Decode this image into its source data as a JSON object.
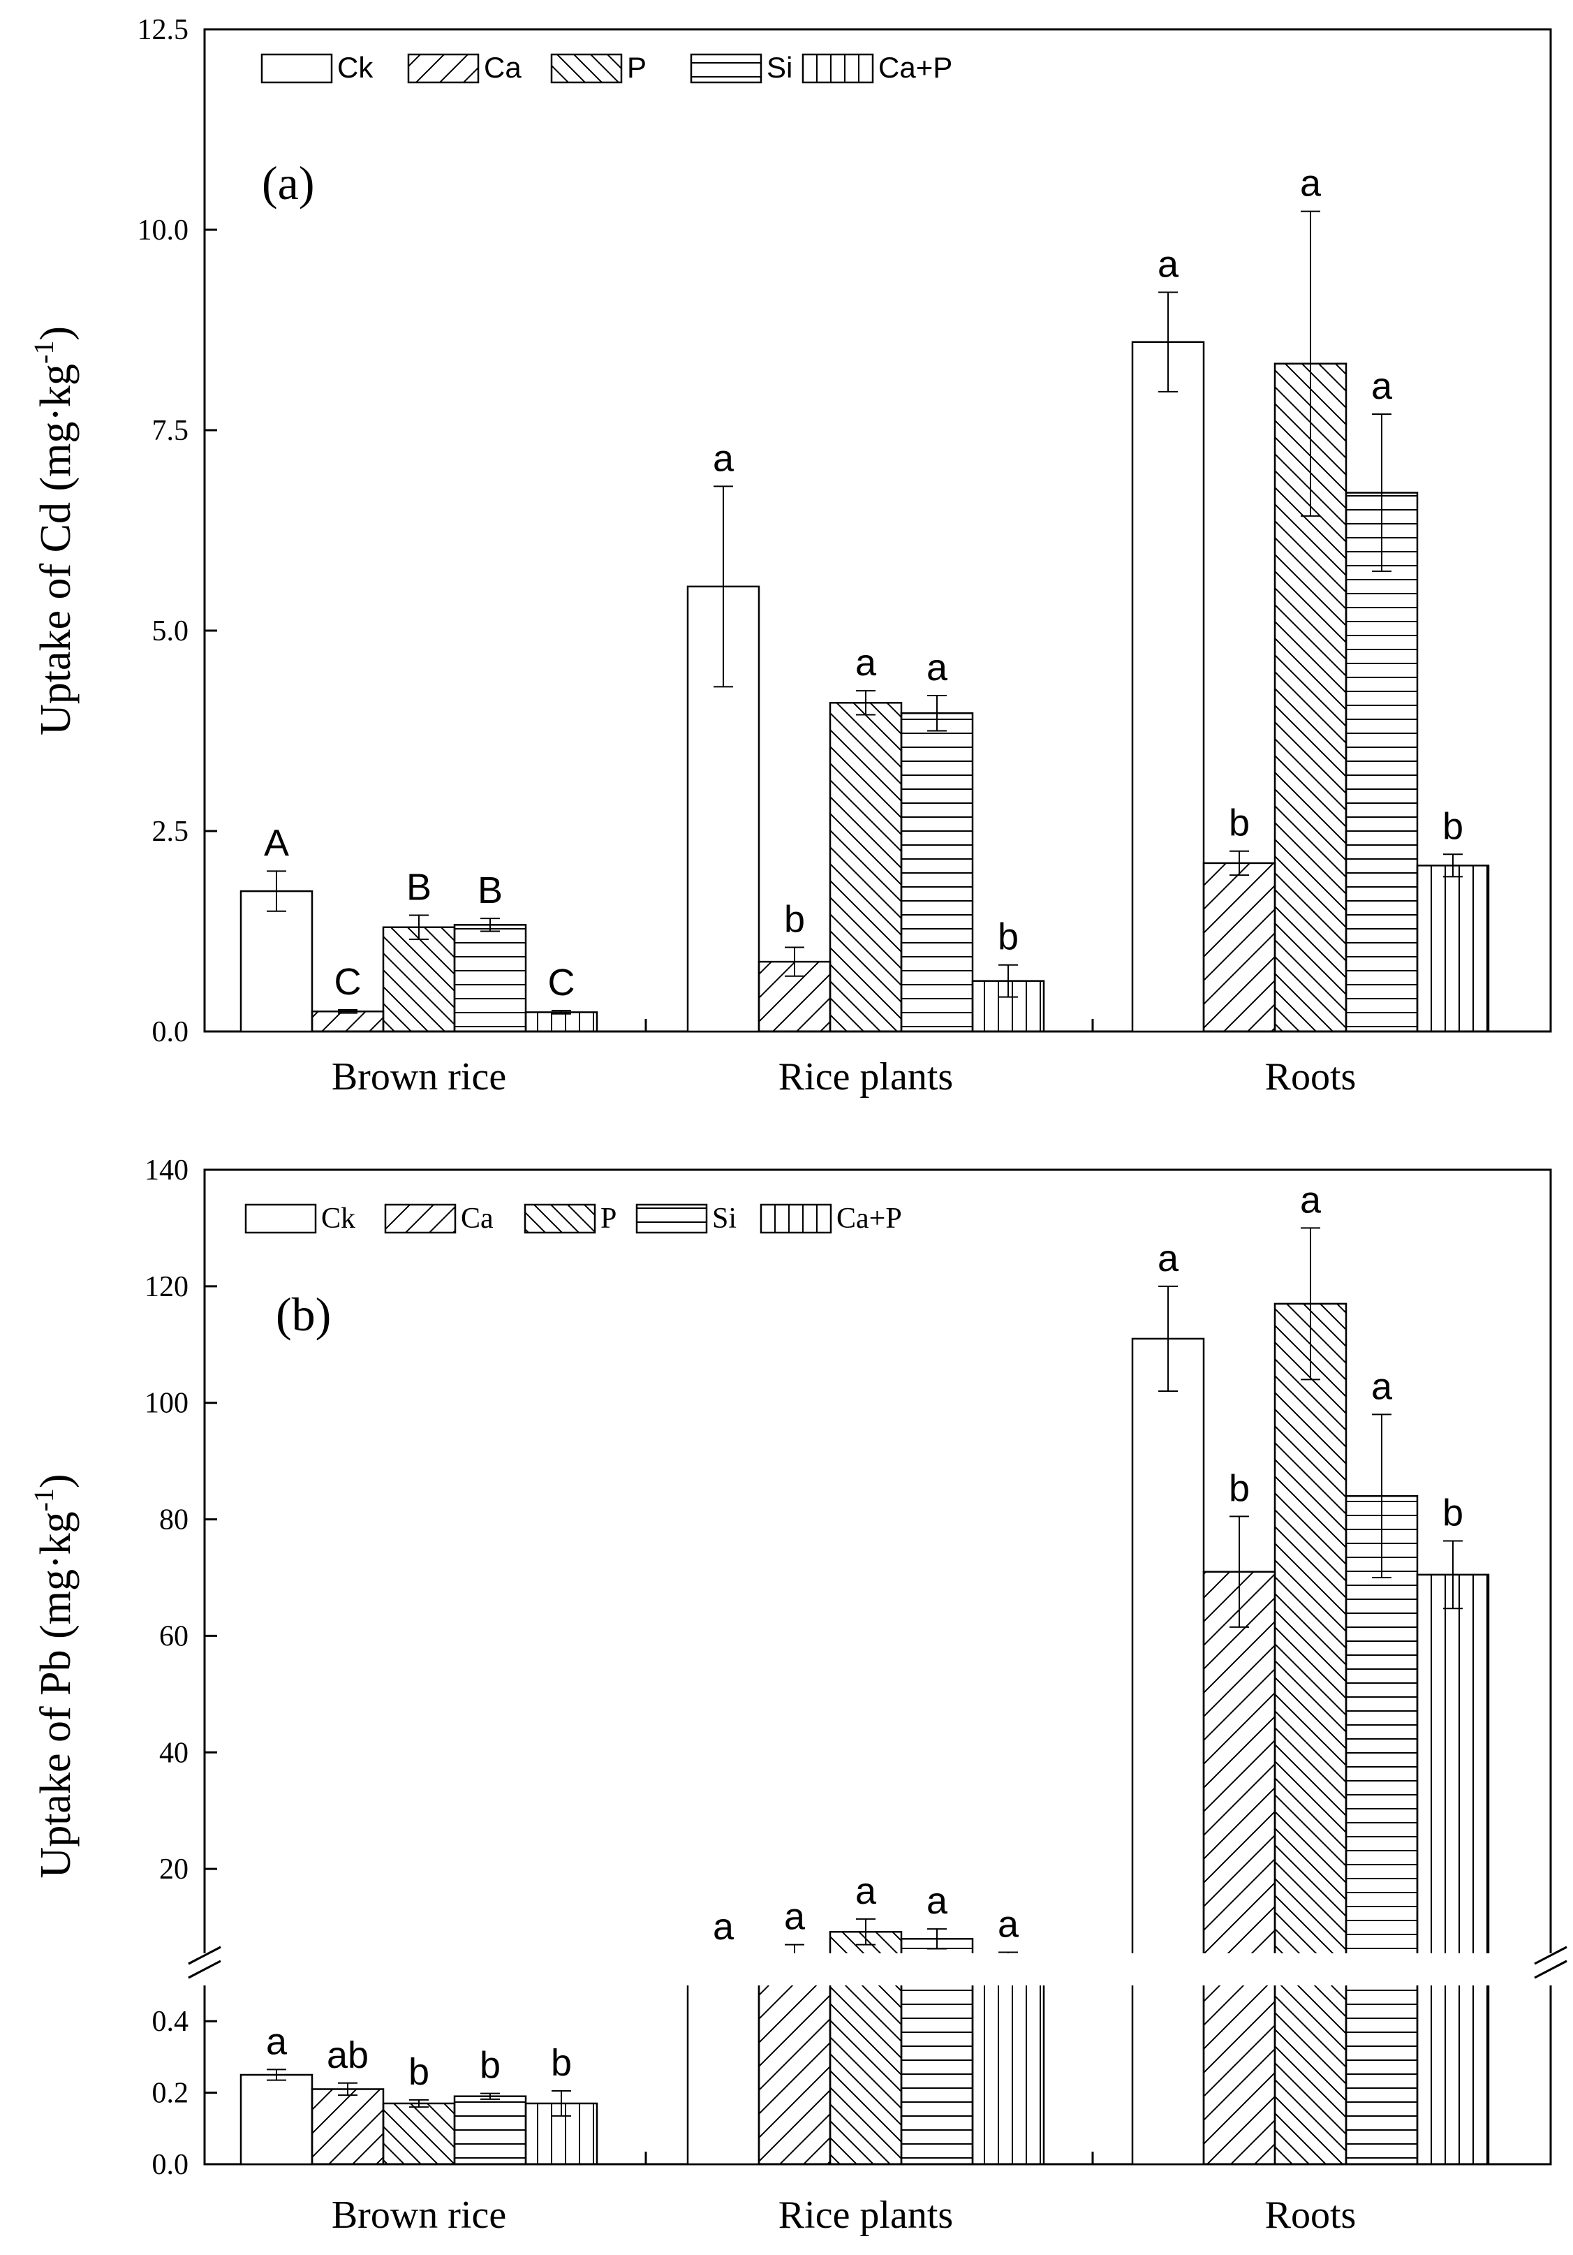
{
  "chart_data": [
    {
      "panel_label": "(a)",
      "type": "bar",
      "ylabel": "Uptake of Cd (mg·kg",
      "ylabel_sup": "-1",
      "ylabel_close": ")",
      "ylim": [
        0,
        12.5
      ],
      "yticks": [
        0.0,
        2.5,
        5.0,
        7.5,
        10.0,
        12.5
      ],
      "ytick_labels": [
        "0.0",
        "2.5",
        "5.0",
        "7.5",
        "10.0",
        "12.5"
      ],
      "categories": [
        "Brown rice",
        "Rice plants",
        "Roots"
      ],
      "legend": [
        "Ck",
        "Ca",
        "P",
        "Si",
        "Ca+P"
      ],
      "legend_position": "top-left",
      "series": [
        {
          "name": "Ck",
          "pattern": "none",
          "values": [
            1.75,
            5.55,
            8.6
          ],
          "errors": [
            0.25,
            1.25,
            0.62
          ],
          "letters": [
            "A",
            "a",
            "a"
          ]
        },
        {
          "name": "Ca",
          "pattern": "fwd",
          "values": [
            0.25,
            0.87,
            2.1
          ],
          "errors": [
            0.02,
            0.18,
            0.15
          ],
          "letters": [
            "C",
            "b",
            "b"
          ]
        },
        {
          "name": "P",
          "pattern": "back",
          "values": [
            1.3,
            4.1,
            8.33
          ],
          "errors": [
            0.15,
            0.15,
            1.9
          ],
          "letters": [
            "B",
            "a",
            "a"
          ]
        },
        {
          "name": "Si",
          "pattern": "horiz",
          "values": [
            1.33,
            3.97,
            6.72
          ],
          "errors": [
            0.08,
            0.22,
            0.98
          ],
          "letters": [
            "B",
            "a",
            "a"
          ]
        },
        {
          "name": "Ca+P",
          "pattern": "vert",
          "values": [
            0.24,
            0.63,
            2.07
          ],
          "errors": [
            0.02,
            0.2,
            0.14
          ],
          "letters": [
            "C",
            "b",
            "b"
          ]
        }
      ]
    },
    {
      "panel_label": "(b)",
      "type": "bar",
      "ylabel": "Uptake of Pb (mg·kg",
      "ylabel_sup": "-1",
      "ylabel_close": ")",
      "axis_break": true,
      "ylim_lower": [
        0,
        0.5
      ],
      "ylim_upper": [
        0,
        140
      ],
      "yticks_lower": [
        0.0,
        0.2,
        0.4
      ],
      "ytick_labels_lower": [
        "0.0",
        "0.2",
        "0.4"
      ],
      "yticks_upper": [
        20,
        40,
        60,
        80,
        100,
        120,
        140
      ],
      "ytick_labels_upper": [
        "20",
        "40",
        "60",
        "80",
        "100",
        "120",
        "140"
      ],
      "categories": [
        "Brown rice",
        "Rice plants",
        "Roots"
      ],
      "legend": [
        "Ck",
        "Ca",
        "P",
        "Si",
        "Ca+P"
      ],
      "legend_position": "top-left",
      "series": [
        {
          "name": "Ck",
          "pattern": "none",
          "values": [
            0.25,
            3.8,
            111
          ],
          "errors": [
            0.015,
            1.5,
            9
          ],
          "letters": [
            "a",
            "a",
            "a"
          ]
        },
        {
          "name": "Ca",
          "pattern": "fwd",
          "values": [
            0.21,
            4.2,
            71
          ],
          "errors": [
            0.017,
            2.8,
            9.5
          ],
          "letters": [
            "ab",
            "a",
            "b"
          ]
        },
        {
          "name": "P",
          "pattern": "back",
          "values": [
            0.17,
            9.2,
            117
          ],
          "errors": [
            0.01,
            2.2,
            13
          ],
          "letters": [
            "b",
            "a",
            "a"
          ]
        },
        {
          "name": "Si",
          "pattern": "horiz",
          "values": [
            0.19,
            8.0,
            84
          ],
          "errors": [
            0.008,
            1.7,
            14
          ],
          "letters": [
            "b",
            "a",
            "a"
          ]
        },
        {
          "name": "Ca+P",
          "pattern": "vert",
          "values": [
            0.17,
            3.4,
            70.5
          ],
          "errors": [
            0.035,
            2.3,
            5.8
          ],
          "letters": [
            "b",
            "a",
            "b"
          ]
        }
      ]
    }
  ]
}
